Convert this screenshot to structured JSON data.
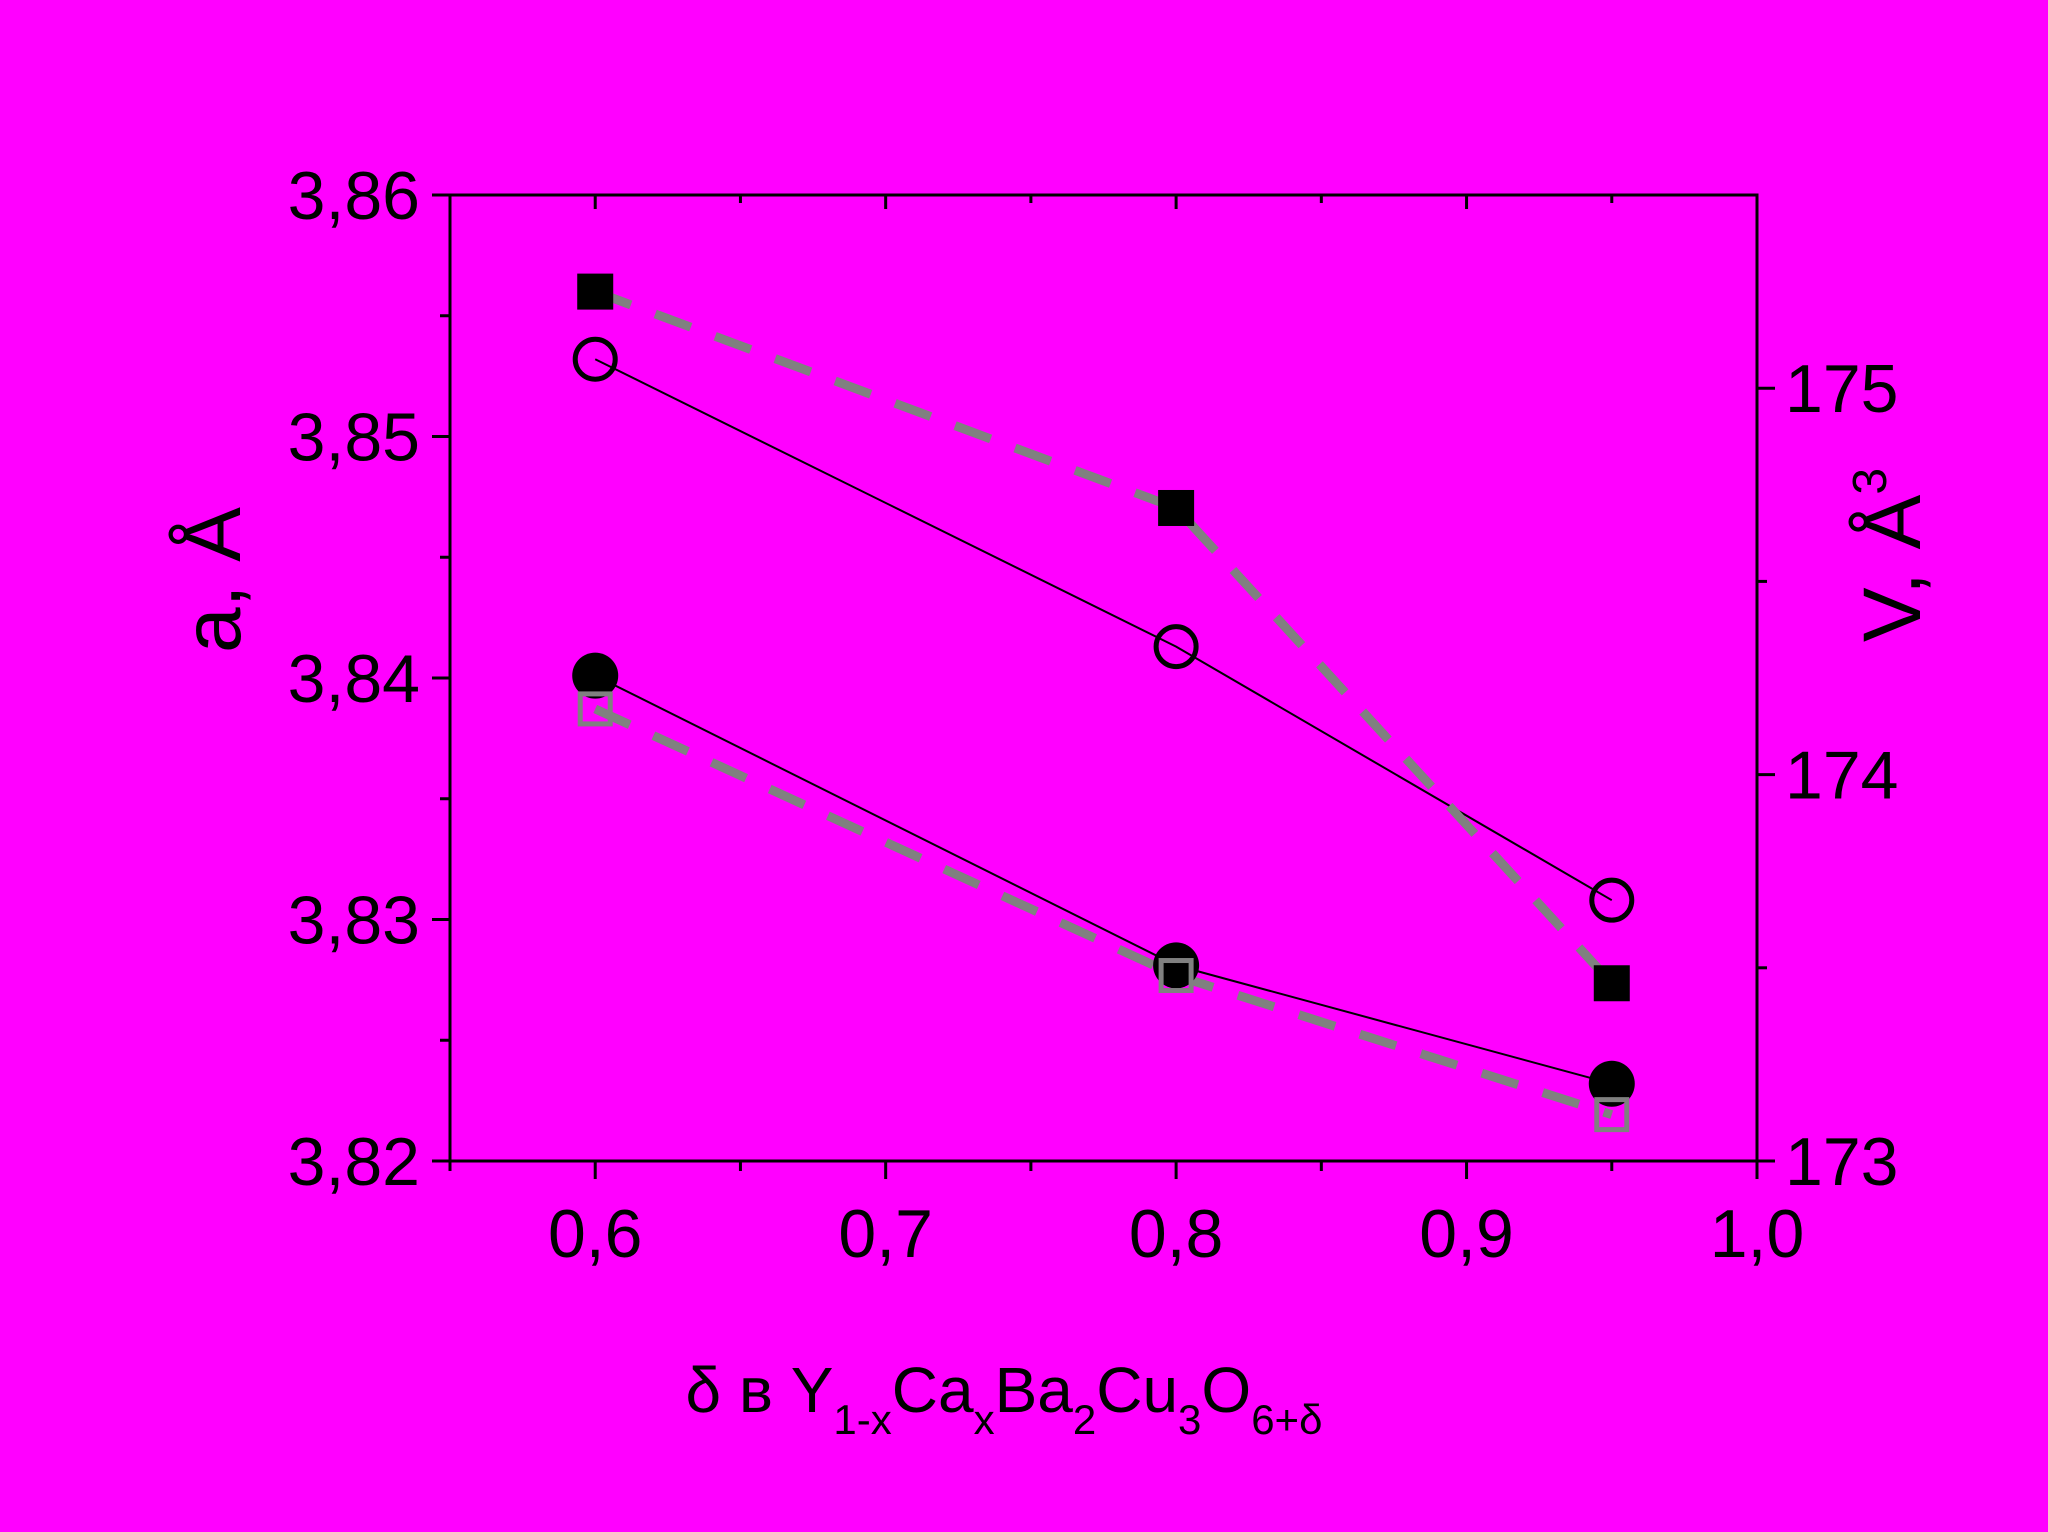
{
  "chart_data": {
    "type": "scatter",
    "background_color": "#ff00ff",
    "xaxis": {
      "min": 0.55,
      "max": 1.0,
      "major_ticks": [
        0.6,
        0.7,
        0.8,
        0.9,
        1.0
      ],
      "minor_ticks": [
        0.55,
        0.65,
        0.75,
        0.85,
        0.95
      ],
      "tick_labels": [
        "0,6",
        "0,7",
        "0,8",
        "0,9",
        "1,0"
      ],
      "label": {
        "prefix": "δ в Y",
        "sub1": "1-x",
        "mid1": "Ca",
        "sub2": "x",
        "mid2": "Ba",
        "sub3": "2",
        "mid3": "Cu",
        "sub4": "3",
        "mid4": "O",
        "sub5": "6+δ"
      }
    },
    "yaxis_left": {
      "min": 3.82,
      "max": 3.86,
      "major_ticks": [
        3.82,
        3.83,
        3.84,
        3.85,
        3.86
      ],
      "minor_ticks": [
        3.825,
        3.835,
        3.845,
        3.855
      ],
      "tick_labels": [
        "3,82",
        "3,83",
        "3,84",
        "3,85",
        "3,86"
      ],
      "label": "a, Å"
    },
    "yaxis_right": {
      "min": 173,
      "max": 175.5,
      "major_ticks": [
        173,
        174,
        175
      ],
      "minor_ticks": [
        173.5,
        174.5
      ],
      "tick_labels": [
        "173",
        "174",
        "175"
      ],
      "label": "V, Å",
      "label_sup": "3"
    },
    "series": [
      {
        "marker": "open-circle",
        "axis": "left",
        "line": "solid",
        "color": "#000000",
        "x": [
          0.6,
          0.8,
          0.95
        ],
        "y": [
          3.8532,
          3.8413,
          3.8308
        ]
      },
      {
        "marker": "filled-circle",
        "axis": "left",
        "line": "solid",
        "color": "#000000",
        "x": [
          0.6,
          0.8,
          0.95
        ],
        "y": [
          3.8401,
          3.8281,
          3.8232
        ]
      },
      {
        "marker": "filled-square",
        "axis": "right",
        "line": "dashed",
        "color": "#000000",
        "line_color": "#808080",
        "x": [
          0.6,
          0.8,
          0.95
        ],
        "y": [
          175.25,
          174.69,
          173.46
        ]
      },
      {
        "marker": "open-square",
        "axis": "right",
        "line": "dashed",
        "color": "#808080",
        "line_color": "#808080",
        "x": [
          0.6,
          0.8,
          0.95
        ],
        "y": [
          174.17,
          173.48,
          173.12
        ]
      }
    ]
  }
}
